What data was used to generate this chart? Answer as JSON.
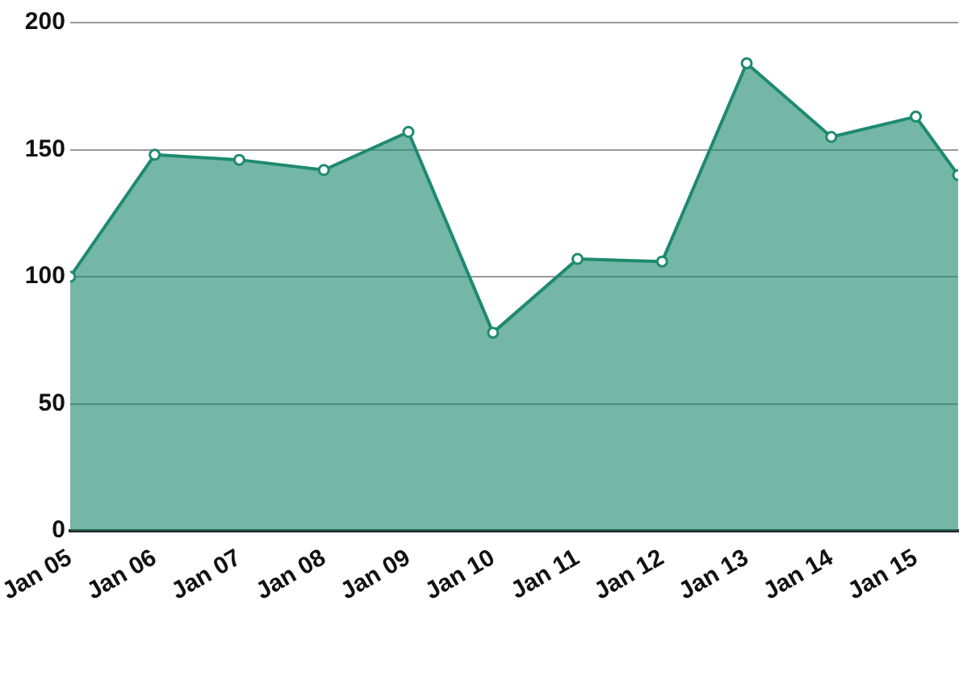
{
  "chart_data": {
    "type": "area",
    "x": [
      "2005-01",
      "2006-01",
      "2007-01",
      "2008-01",
      "2009-01",
      "2010-01",
      "2011-01",
      "2012-01",
      "2013-01",
      "2014-01",
      "2015-01",
      "2015-07"
    ],
    "series": [
      {
        "color": "#1e8a70",
        "values": [
          100,
          148,
          146,
          142,
          157,
          78,
          107,
          106,
          184,
          155,
          163,
          140
        ]
      }
    ],
    "xlim": [
      "2005-01",
      "2015-07"
    ],
    "xticks": [
      {
        "value": "2005-01",
        "label": "Jan 05"
      },
      {
        "value": "2006-01",
        "label": "Jan 06"
      },
      {
        "value": "2007-01",
        "label": "Jan 07"
      },
      {
        "value": "2008-01",
        "label": "Jan 08"
      },
      {
        "value": "2009-01",
        "label": "Jan 09"
      },
      {
        "value": "2010-01",
        "label": "Jan 10"
      },
      {
        "value": "2011-01",
        "label": "Jan 11"
      },
      {
        "value": "2012-01",
        "label": "Jan 12"
      },
      {
        "value": "2013-01",
        "label": "Jan 13"
      },
      {
        "value": "2014-01",
        "label": "Jan 14"
      },
      {
        "value": "2015-01",
        "label": "Jan 15"
      }
    ],
    "ylim": [
      0,
      200
    ],
    "yticks": [
      0,
      50,
      100,
      150,
      200
    ],
    "grid": "y",
    "legend": false,
    "marker": "circle"
  }
}
